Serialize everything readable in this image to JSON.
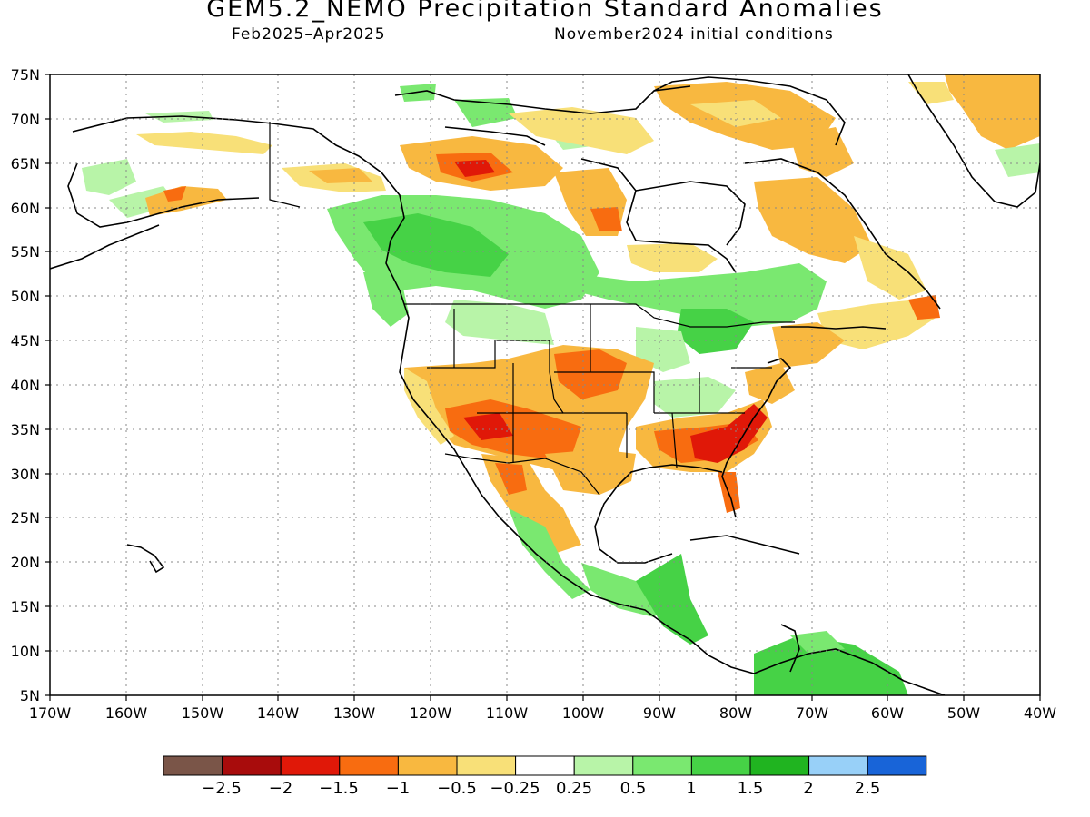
{
  "header": {
    "title": "GEM5.2_NEMO Precipitation Standard Anomalies",
    "period": "Feb2025–Apr2025",
    "initial_conditions": "November2024 initial conditions"
  },
  "map": {
    "projection": "lat-lon",
    "lon_range": [
      -170,
      -40
    ],
    "lat_range": [
      5,
      75
    ],
    "grid": "dotted",
    "lat_labels": [
      "75N",
      "70N",
      "65N",
      "60N",
      "55N",
      "50N",
      "45N",
      "40N",
      "35N",
      "30N",
      "25N",
      "20N",
      "15N",
      "10N",
      "5N"
    ],
    "lon_labels": [
      "170W",
      "160W",
      "150W",
      "140W",
      "130W",
      "120W",
      "110W",
      "100W",
      "90W",
      "80W",
      "70W",
      "60W",
      "50W",
      "40W"
    ],
    "colors": {
      "dry_extreme": "#7a5548",
      "dry_2": "#a80c0c",
      "dry_15": "#e01808",
      "dry_1": "#f86c10",
      "dry_05": "#f8b840",
      "dry_025": "#f8e078",
      "neutral": "#ffffff",
      "wet_025": "#b8f4a8",
      "wet_05": "#7ae870",
      "wet_1": "#46d246",
      "wet_15": "#20b420",
      "wet_2": "#98d0f8",
      "wet_extreme": "#1864d8"
    }
  },
  "legend": {
    "colors": [
      "#7a5548",
      "#a80c0c",
      "#e01808",
      "#f86c10",
      "#f8b840",
      "#f8e078",
      "#ffffff",
      "#b8f4a8",
      "#7ae870",
      "#46d246",
      "#20b420",
      "#98d0f8",
      "#1864d8"
    ],
    "labels": [
      "−2.5",
      "−2",
      "−1.5",
      "−1",
      "−0.5",
      "−0.25",
      "0.25",
      "0.5",
      "1",
      "1.5",
      "2",
      "2.5"
    ]
  }
}
